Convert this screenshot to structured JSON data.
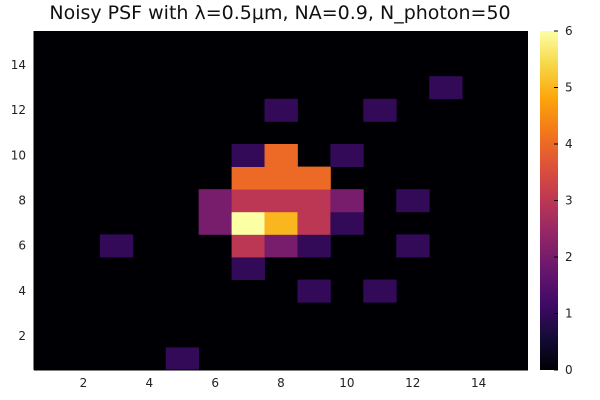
{
  "chart_data": {
    "type": "heatmap",
    "title": "Noisy PSF with λ=0.5μm, NA=0.9, N_photon=50",
    "xlabel": "",
    "ylabel": "",
    "xlim": [
      0.5,
      15.5
    ],
    "ylim": [
      0.5,
      15.5
    ],
    "x_ticks": [
      2,
      4,
      6,
      8,
      10,
      12,
      14
    ],
    "y_ticks": [
      2,
      4,
      6,
      8,
      10,
      12,
      14
    ],
    "colorbar": {
      "colormap": "inferno",
      "range": [
        0,
        6
      ],
      "ticks": [
        0,
        1,
        2,
        3,
        4,
        5,
        6
      ]
    },
    "grid": false,
    "rows": 15,
    "cols": 15,
    "nonzero_cells": [
      {
        "x": 5,
        "y": 1,
        "value": 1
      },
      {
        "x": 7,
        "y": 5,
        "value": 1
      },
      {
        "x": 9,
        "y": 4,
        "value": 1
      },
      {
        "x": 11,
        "y": 4,
        "value": 1
      },
      {
        "x": 3,
        "y": 6,
        "value": 1
      },
      {
        "x": 7,
        "y": 6,
        "value": 3
      },
      {
        "x": 8,
        "y": 6,
        "value": 2
      },
      {
        "x": 9,
        "y": 6,
        "value": 1
      },
      {
        "x": 12,
        "y": 6,
        "value": 1
      },
      {
        "x": 6,
        "y": 7,
        "value": 2
      },
      {
        "x": 7,
        "y": 7,
        "value": 6
      },
      {
        "x": 8,
        "y": 7,
        "value": 5
      },
      {
        "x": 9,
        "y": 7,
        "value": 3
      },
      {
        "x": 10,
        "y": 7,
        "value": 1
      },
      {
        "x": 6,
        "y": 8,
        "value": 2
      },
      {
        "x": 7,
        "y": 8,
        "value": 3
      },
      {
        "x": 8,
        "y": 8,
        "value": 3
      },
      {
        "x": 9,
        "y": 8,
        "value": 3
      },
      {
        "x": 10,
        "y": 8,
        "value": 2
      },
      {
        "x": 12,
        "y": 8,
        "value": 1
      },
      {
        "x": 7,
        "y": 9,
        "value": 4
      },
      {
        "x": 8,
        "y": 9,
        "value": 4
      },
      {
        "x": 9,
        "y": 9,
        "value": 4
      },
      {
        "x": 7,
        "y": 10,
        "value": 1
      },
      {
        "x": 8,
        "y": 10,
        "value": 4
      },
      {
        "x": 10,
        "y": 10,
        "value": 1
      },
      {
        "x": 8,
        "y": 12,
        "value": 1
      },
      {
        "x": 11,
        "y": 12,
        "value": 1
      },
      {
        "x": 13,
        "y": 13,
        "value": 1
      }
    ]
  }
}
